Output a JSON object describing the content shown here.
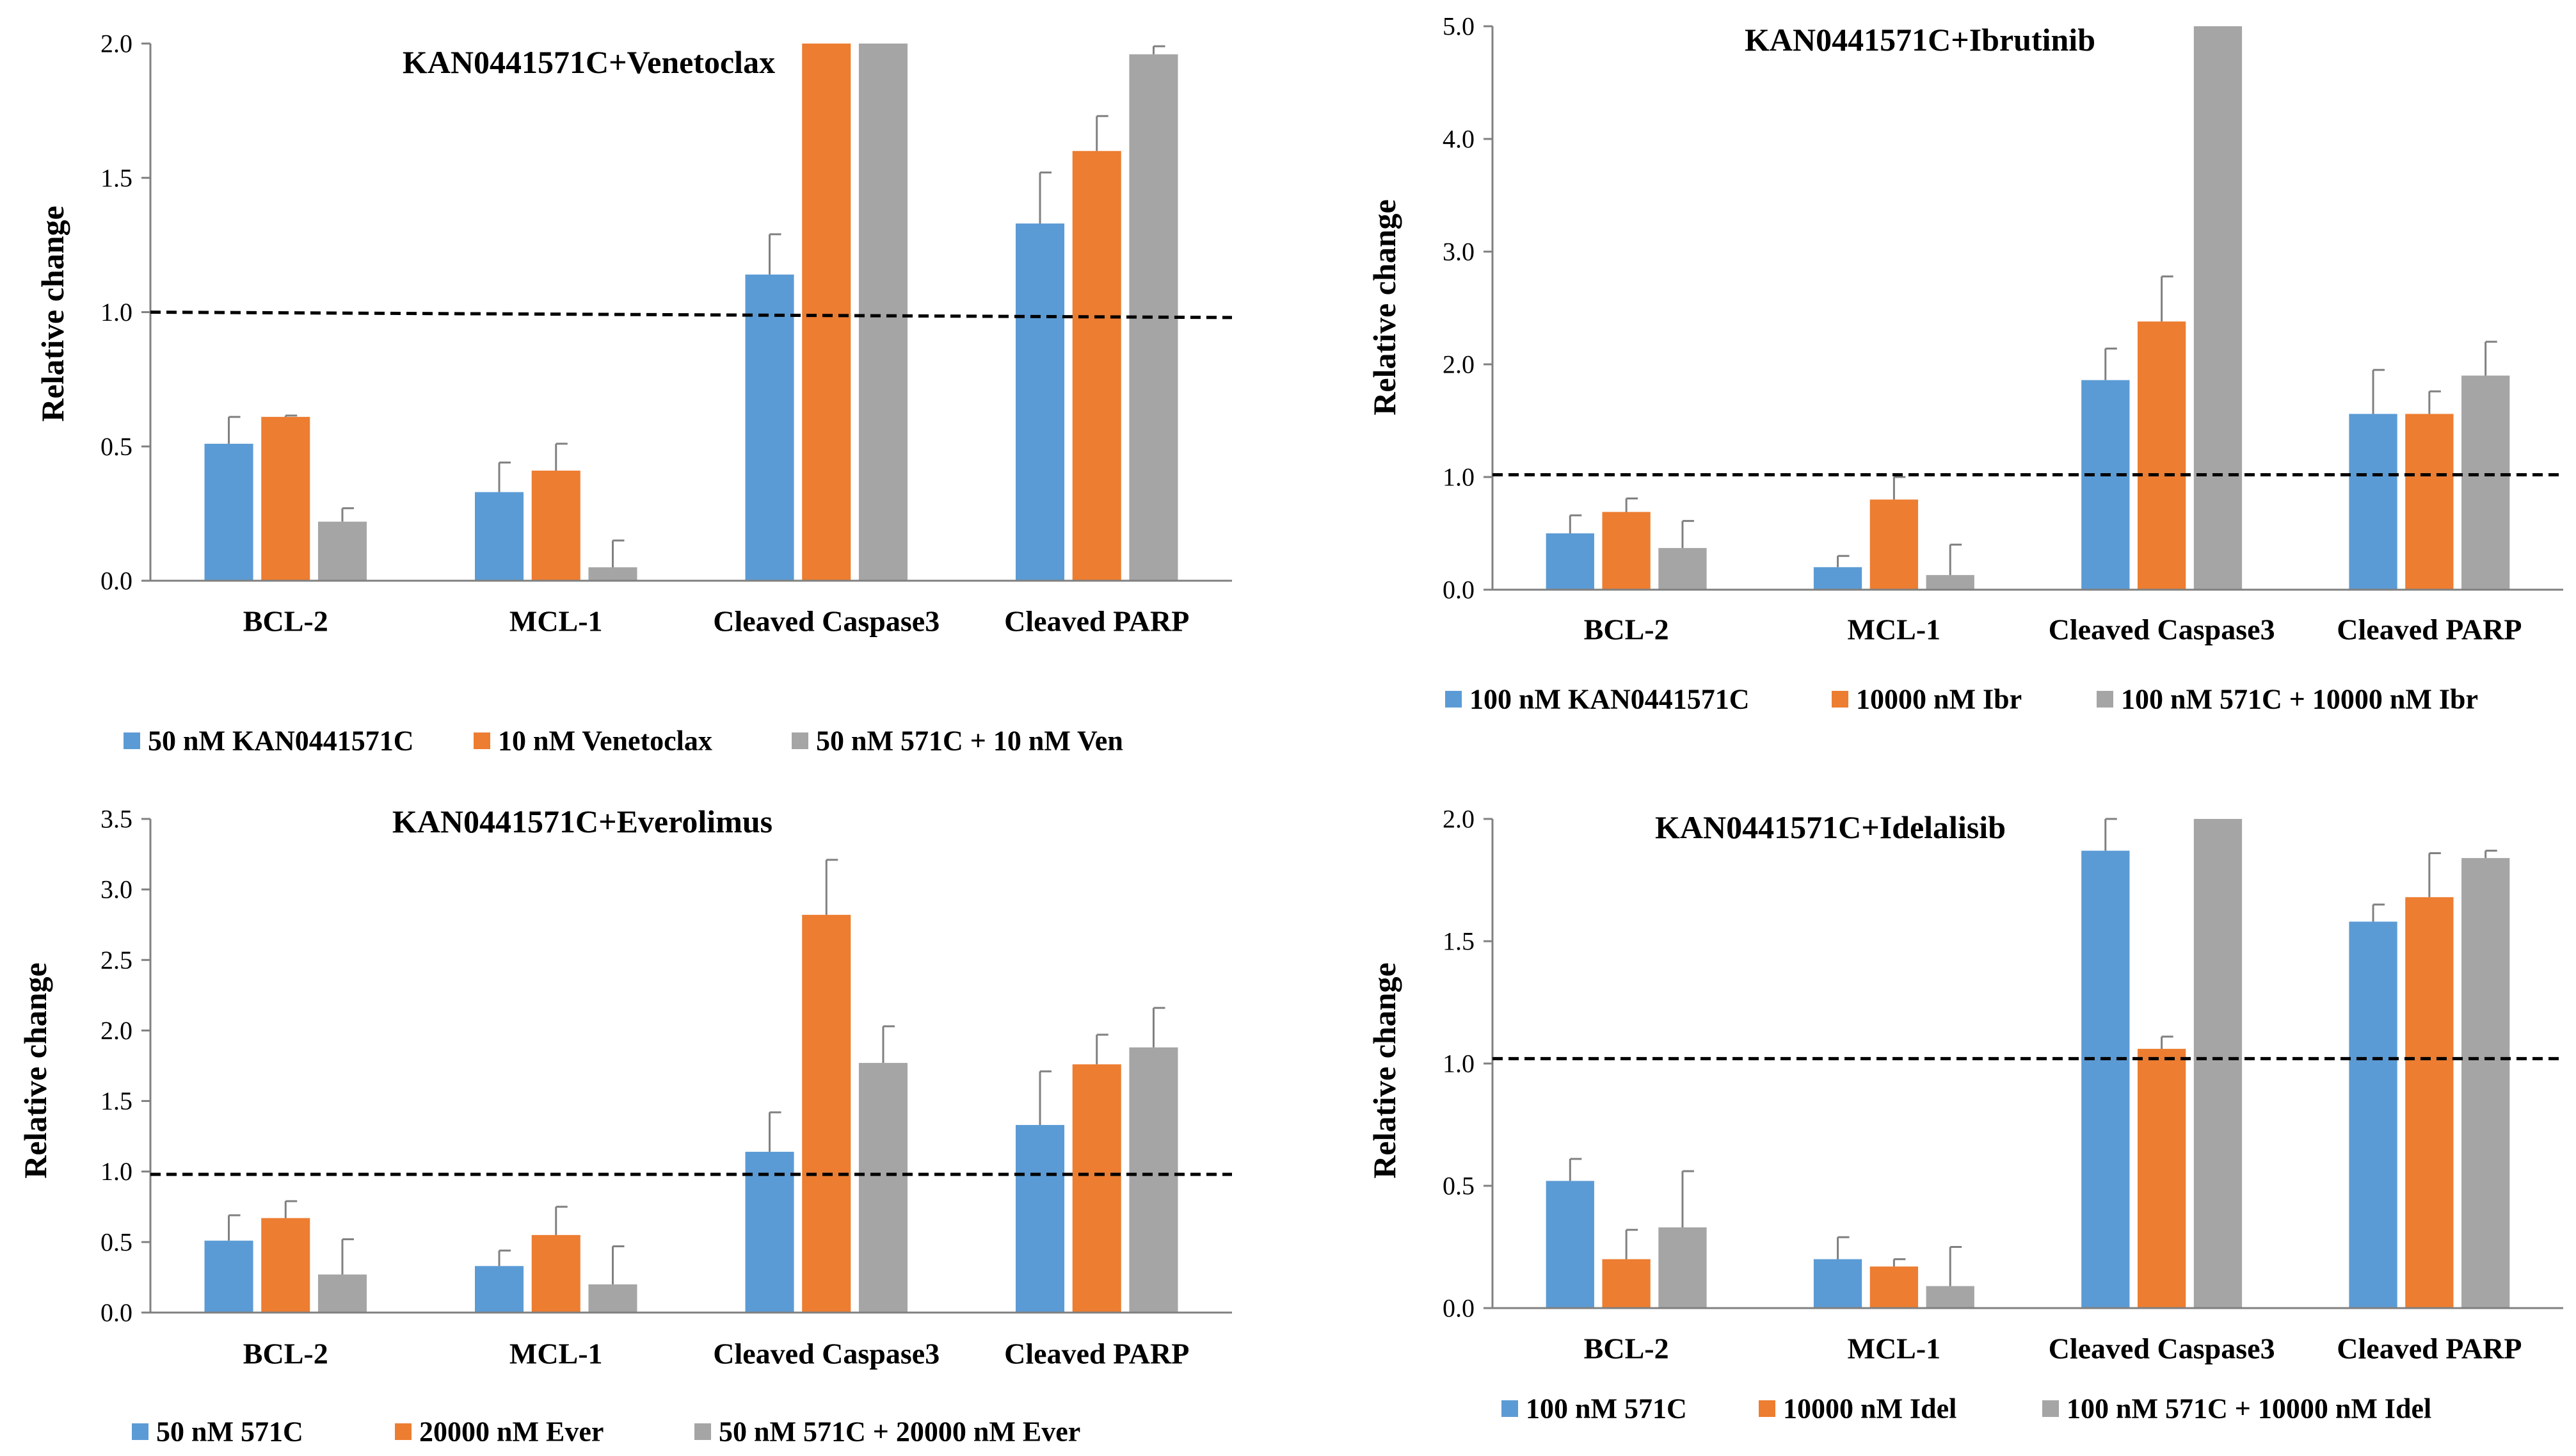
{
  "colors": {
    "s1": "#5B9BD5",
    "s2": "#ED7D31",
    "s3": "#A5A5A5",
    "axis": "#808080",
    "text": "#000000"
  },
  "chart_data": [
    {
      "type": "bar",
      "title": "KAN0441571C+Venetoclax",
      "ylabel": "Relative change",
      "xlabel": "",
      "categories": [
        "BCL-2",
        "MCL-1",
        "Cleaved Caspase3",
        "Cleaved PARP"
      ],
      "ylim": [
        0,
        2.0
      ],
      "yticks": [
        "0.0",
        "0.5",
        "1.0",
        "1.5",
        "2.0"
      ],
      "tick_values": [
        0,
        0.5,
        1.0,
        1.5,
        2.0
      ],
      "reference_line": [
        1.0,
        0.98
      ],
      "legend": "bottom",
      "series": [
        {
          "name": "50 nM KAN0441571C",
          "values": [
            0.51,
            0.33,
            1.14,
            1.33
          ],
          "errors": [
            0.1,
            0.11,
            0.15,
            0.19
          ]
        },
        {
          "name": "10 nM Venetoclax",
          "values": [
            0.61,
            0.41,
            2.0,
            1.6
          ],
          "errors": [
            0.005,
            0.1,
            null,
            0.13
          ]
        },
        {
          "name": "50 nM 571C + 10 nM Ven",
          "values": [
            0.22,
            0.05,
            2.0,
            1.96
          ],
          "errors": [
            0.05,
            0.1,
            null,
            0.03
          ]
        }
      ]
    },
    {
      "type": "bar",
      "title": "KAN0441571C+Ibrutinib",
      "ylabel": "Relative change",
      "xlabel": "",
      "categories": [
        "BCL-2",
        "MCL-1",
        "Cleaved Caspase3",
        "Cleaved PARP"
      ],
      "ylim": [
        0,
        5.0
      ],
      "yticks": [
        "0.0",
        "1.0",
        "2.0",
        "3.0",
        "4.0",
        "5.0"
      ],
      "tick_values": [
        0,
        1.0,
        2.0,
        3.0,
        4.0,
        5.0
      ],
      "reference_line": [
        1.02,
        1.02
      ],
      "legend": "bottom",
      "series": [
        {
          "name": "100 nM KAN0441571C",
          "values": [
            0.5,
            0.2,
            1.86,
            1.56
          ],
          "errors": [
            0.16,
            0.1,
            0.28,
            0.39
          ]
        },
        {
          "name": "10000 nM Ibr",
          "values": [
            0.69,
            0.8,
            2.38,
            1.56
          ],
          "errors": [
            0.12,
            0.2,
            0.4,
            0.2
          ]
        },
        {
          "name": "100 nM 571C + 10000 nM Ibr",
          "values": [
            0.37,
            0.13,
            5.0,
            1.9
          ],
          "errors": [
            0.24,
            0.27,
            null,
            0.3
          ]
        }
      ]
    },
    {
      "type": "bar",
      "title": "KAN0441571C+Everolimus",
      "ylabel": "Relative change",
      "xlabel": "",
      "categories": [
        "BCL-2",
        "MCL-1",
        "Cleaved Caspase3",
        "Cleaved PARP"
      ],
      "ylim": [
        0,
        3.5
      ],
      "yticks": [
        "0.0",
        "0.5",
        "1.0",
        "1.5",
        "2.0",
        "2.5",
        "3.0",
        "3.5"
      ],
      "tick_values": [
        0,
        0.5,
        1.0,
        1.5,
        2.0,
        2.5,
        3.0,
        3.5
      ],
      "reference_line": [
        0.98,
        0.98
      ],
      "legend": "bottom",
      "series": [
        {
          "name": "50 nM 571C",
          "values": [
            0.51,
            0.33,
            1.14,
            1.33
          ],
          "errors": [
            0.18,
            0.11,
            0.28,
            0.38
          ]
        },
        {
          "name": "20000 nM Ever",
          "values": [
            0.67,
            0.55,
            2.82,
            1.76
          ],
          "errors": [
            0.12,
            0.2,
            0.39,
            0.21
          ]
        },
        {
          "name": "50 nM 571C + 20000 nM Ever",
          "values": [
            0.27,
            0.2,
            1.77,
            1.88
          ],
          "errors": [
            0.25,
            0.27,
            0.26,
            0.28
          ]
        }
      ]
    },
    {
      "type": "bar",
      "title": "KAN0441571C+Idelalisib",
      "ylabel": "Relative change",
      "xlabel": "",
      "categories": [
        "BCL-2",
        "MCL-1",
        "Cleaved Caspase3",
        "Cleaved PARP"
      ],
      "ylim": [
        0,
        2.0
      ],
      "yticks": [
        "0.0",
        "0.5",
        "1.0",
        "1.5",
        "2.0"
      ],
      "tick_values": [
        0,
        0.5,
        1.0,
        1.5,
        2.0
      ],
      "reference_line": [
        1.02,
        1.02
      ],
      "legend": "bottom",
      "series": [
        {
          "name": "100 nM 571C",
          "values": [
            0.52,
            0.2,
            1.87,
            1.58
          ],
          "errors": [
            0.09,
            0.09,
            0.13,
            0.07
          ]
        },
        {
          "name": "10000 nM Idel",
          "values": [
            0.2,
            0.17,
            1.06,
            1.68
          ],
          "errors": [
            0.12,
            0.03,
            0.05,
            0.18
          ]
        },
        {
          "name": "100 nM 571C + 10000 nM Idel",
          "values": [
            0.33,
            0.09,
            2.0,
            1.84
          ],
          "errors": [
            0.23,
            0.16,
            null,
            0.03
          ]
        }
      ]
    }
  ]
}
